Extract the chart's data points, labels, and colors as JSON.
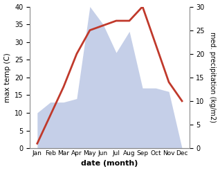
{
  "months": [
    "Jan",
    "Feb",
    "Mar",
    "Apr",
    "May",
    "Jun",
    "Jul",
    "Aug",
    "Sep",
    "Oct",
    "Nov",
    "Dec"
  ],
  "temperature": [
    10,
    13,
    13,
    14,
    40,
    35,
    27,
    33,
    17,
    17,
    16,
    0
  ],
  "precipitation": [
    1,
    7,
    13,
    20,
    25,
    26,
    27,
    27,
    30,
    22,
    14,
    10
  ],
  "temp_fill_color": "#c5cfe8",
  "precip_color": "#c0392b",
  "left_label": "max temp (C)",
  "right_label": "med. precipitation (kg/m2)",
  "xlabel": "date (month)",
  "ylim_left": [
    0,
    40
  ],
  "ylim_right": [
    0,
    30
  ],
  "bg_color": "#ffffff"
}
